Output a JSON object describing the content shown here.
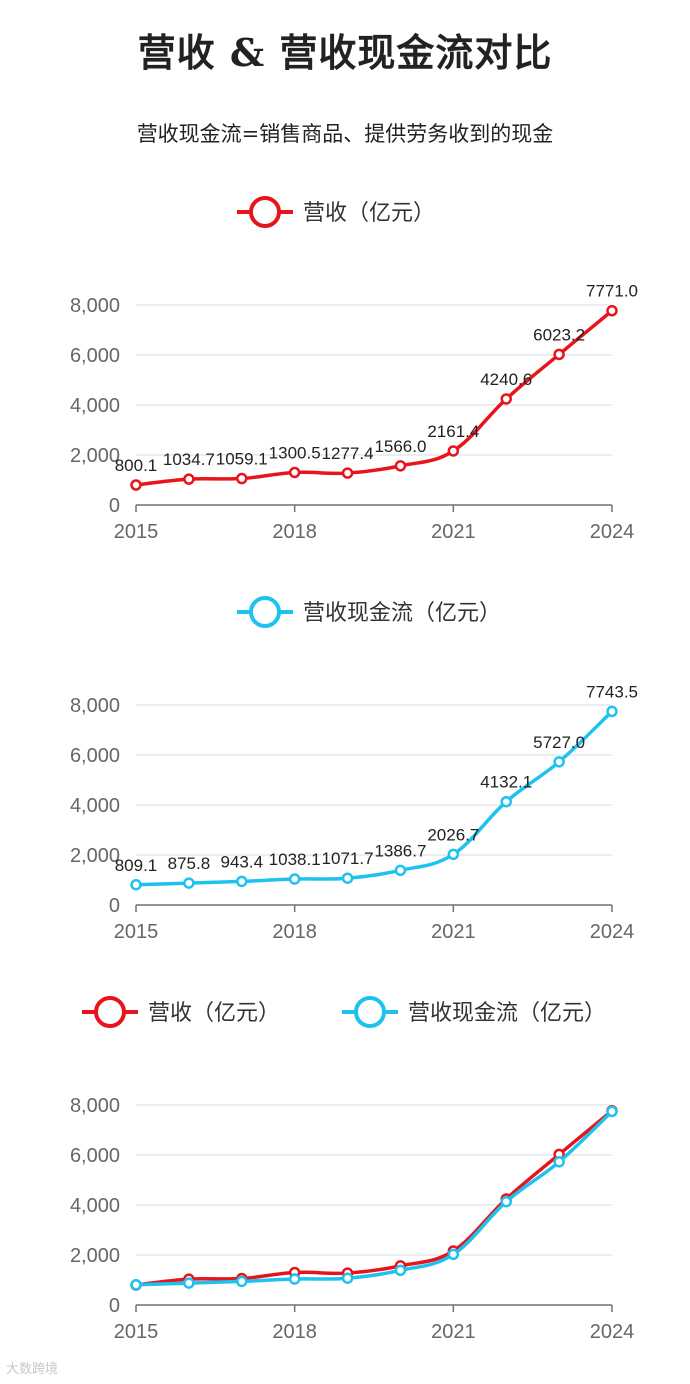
{
  "title": "营收 & 营收现金流对比",
  "subtitle": "营收现金流=销售商品、提供劳务收到的现金",
  "watermark": "大数跨境",
  "colors": {
    "revenue": "#e8141b",
    "cashflow": "#1ec2ee",
    "grid": "#e3e8ef",
    "axis": "#6e7079"
  },
  "chart_data": [
    {
      "type": "line",
      "x": [
        2015,
        2016,
        2017,
        2018,
        2019,
        2020,
        2021,
        2022,
        2023,
        2024
      ],
      "xticks": [
        "2015",
        "2018",
        "2021",
        "2024"
      ],
      "yticks": [
        "0",
        "2,000",
        "4,000",
        "6,000",
        "8,000"
      ],
      "ylim": [
        0,
        8000
      ],
      "legend": "top-center",
      "series": [
        {
          "name": "营收（亿元）",
          "color": "#e8141b",
          "values": [
            800.1,
            1034.7,
            1059.1,
            1300.5,
            1277.4,
            1566.0,
            2161.4,
            4240.6,
            6023.2,
            7771.0
          ],
          "labels": [
            "800.1",
            "1034.7",
            "1059.1",
            "1300.5",
            "1277.4",
            "1566.0",
            "2161.4",
            "4240.6",
            "6023.2",
            "7771.0"
          ]
        }
      ]
    },
    {
      "type": "line",
      "x": [
        2015,
        2016,
        2017,
        2018,
        2019,
        2020,
        2021,
        2022,
        2023,
        2024
      ],
      "xticks": [
        "2015",
        "2018",
        "2021",
        "2024"
      ],
      "yticks": [
        "0",
        "2,000",
        "4,000",
        "6,000",
        "8,000"
      ],
      "ylim": [
        0,
        8000
      ],
      "legend": "top-center",
      "series": [
        {
          "name": "营收现金流（亿元）",
          "color": "#1ec2ee",
          "values": [
            809.1,
            875.8,
            943.4,
            1038.1,
            1071.7,
            1386.7,
            2026.7,
            4132.1,
            5727.0,
            7743.5
          ],
          "labels": [
            "809.1",
            "875.8",
            "943.4",
            "1038.1",
            "1071.7",
            "1386.7",
            "2026.7",
            "4132.1",
            "5727.0",
            "7743.5"
          ]
        }
      ]
    },
    {
      "type": "line",
      "x": [
        2015,
        2016,
        2017,
        2018,
        2019,
        2020,
        2021,
        2022,
        2023,
        2024
      ],
      "xticks": [
        "2015",
        "2018",
        "2021",
        "2024"
      ],
      "yticks": [
        "0",
        "2,000",
        "4,000",
        "6,000",
        "8,000"
      ],
      "ylim": [
        0,
        8000
      ],
      "legend": "top-center",
      "series": [
        {
          "name": "营收（亿元）",
          "color": "#e8141b",
          "values": [
            800.1,
            1034.7,
            1059.1,
            1300.5,
            1277.4,
            1566.0,
            2161.4,
            4240.6,
            6023.2,
            7771.0
          ]
        },
        {
          "name": "营收现金流（亿元）",
          "color": "#1ec2ee",
          "values": [
            809.1,
            875.8,
            943.4,
            1038.1,
            1071.7,
            1386.7,
            2026.7,
            4132.1,
            5727.0,
            7743.5
          ]
        }
      ]
    }
  ]
}
